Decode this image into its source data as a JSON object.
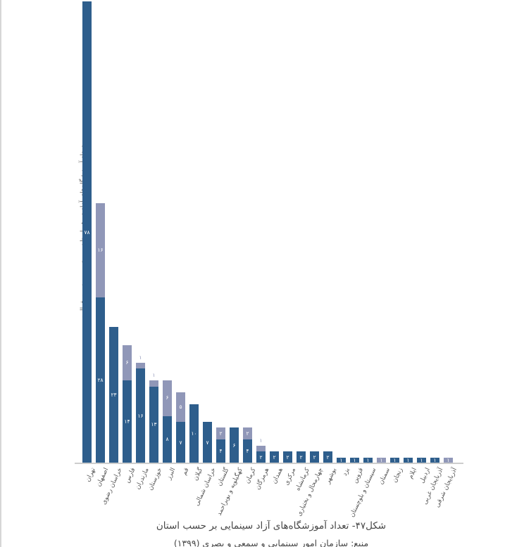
{
  "page": {
    "background": "#ffffff",
    "left_edge_color": "#d6d6d6"
  },
  "chart_data": {
    "type": "bar",
    "stacked": true,
    "title": "شکل۴۷- تعداد آموزشگاه‌های آزاد سینمایی بر حسب استان",
    "source_line": "منبع: سازمان امور سینمایی و سمعی و بصری (۱۳۹۹)",
    "ylabel": "تعداد آموزشگاه‌های آزاد در هر استان - برحسب وضعیت فعالیت",
    "xlabel": "",
    "legend": "none",
    "grid": false,
    "ylim": [
      0,
      78
    ],
    "digit_style": "persian",
    "axis_line_color": "#cdcdcd",
    "label_text_color": "#595959",
    "bar_value_color": "#ffffff",
    "categories": [
      "تهران",
      "اصفهان",
      "خراسان رضوی",
      "فارس",
      "مازندران",
      "خوزستان",
      "البرز",
      "قم",
      "گیلان",
      "خراسان شمالی",
      "گلستان",
      "کهگیلویه و بویراحمد",
      "کرمان",
      "هرمزگان",
      "همدان",
      "مرکزی",
      "کرمانشاه",
      "چهارمحال و بختیاری",
      "بوشهر",
      "یزد",
      "قزوین",
      "سیستان و بلوچستان",
      "سمنان",
      "زنجان",
      "ایلام",
      "اردبیل",
      "آذربایجان غربی",
      "آذربایجان شرقی"
    ],
    "series": [
      {
        "name": "dark",
        "color": "#2e5e8c",
        "values": [
          78,
          28,
          23,
          14,
          16,
          13,
          8,
          7,
          10,
          7,
          4,
          6,
          4,
          2,
          2,
          2,
          2,
          2,
          2,
          1,
          1,
          1,
          0,
          1,
          1,
          1,
          1,
          0
        ]
      },
      {
        "name": "light",
        "color": "#9097b8",
        "values": [
          0,
          16,
          0,
          6,
          1,
          1,
          6,
          5,
          0,
          0,
          2,
          0,
          2,
          1,
          0,
          0,
          0,
          0,
          0,
          0,
          0,
          0,
          1,
          0,
          0,
          0,
          0,
          1
        ]
      }
    ]
  }
}
